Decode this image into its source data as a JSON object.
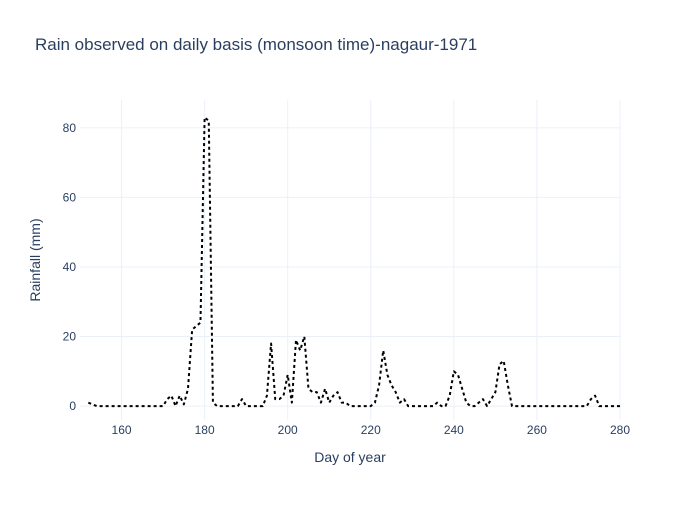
{
  "chart_data": {
    "type": "line",
    "title": "Rain observed on daily basis (monsoon time)-nagaur-1971",
    "xlabel": "Day of year",
    "ylabel": "Rainfall (mm)",
    "xlim": [
      150,
      280
    ],
    "ylim": [
      -4,
      88
    ],
    "x_ticks": [
      160,
      180,
      200,
      220,
      240,
      260,
      280
    ],
    "y_ticks": [
      0,
      20,
      40,
      60,
      80
    ],
    "grid": true,
    "legend": "none",
    "series": [
      {
        "line_color": "#000000",
        "line_style": "dotted",
        "x": [
          152,
          153,
          154,
          155,
          156,
          157,
          158,
          159,
          160,
          161,
          162,
          163,
          164,
          165,
          166,
          167,
          168,
          169,
          170,
          171,
          172,
          173,
          174,
          175,
          176,
          177,
          178,
          179,
          180,
          181,
          182,
          183,
          184,
          185,
          186,
          187,
          188,
          189,
          190,
          191,
          192,
          193,
          194,
          195,
          196,
          197,
          198,
          199,
          200,
          201,
          202,
          203,
          204,
          205,
          206,
          207,
          208,
          209,
          210,
          211,
          212,
          213,
          214,
          215,
          216,
          217,
          218,
          219,
          220,
          221,
          222,
          223,
          224,
          225,
          226,
          227,
          228,
          229,
          230,
          231,
          232,
          233,
          234,
          235,
          236,
          237,
          238,
          239,
          240,
          241,
          242,
          243,
          244,
          245,
          246,
          247,
          248,
          249,
          250,
          251,
          252,
          253,
          254,
          255,
          256,
          257,
          258,
          259,
          260,
          261,
          262,
          263,
          264,
          265,
          266,
          267,
          268,
          269,
          270,
          271,
          272,
          273,
          274,
          275,
          276,
          277,
          278,
          279,
          280
        ],
        "y": [
          1,
          0.5,
          0,
          0,
          0,
          0,
          0,
          0,
          0,
          0,
          0,
          0,
          0,
          0,
          0,
          0,
          0,
          0,
          0,
          2,
          3,
          0,
          3,
          0.5,
          5,
          22,
          23,
          24,
          83,
          82,
          1,
          0,
          0,
          0,
          0,
          0,
          0,
          2,
          0,
          0,
          0,
          0,
          0,
          3,
          18,
          2,
          2,
          3,
          9,
          1,
          19,
          16,
          20,
          5,
          4,
          4,
          1,
          5,
          1,
          3,
          4,
          1,
          1,
          0,
          0,
          0,
          0,
          0,
          0,
          1,
          6,
          16,
          9,
          6,
          4,
          1,
          2,
          0,
          0,
          0,
          0,
          0,
          0,
          0,
          1,
          0,
          0,
          3,
          10,
          9,
          5,
          1,
          0,
          0,
          1,
          2,
          0,
          2,
          4,
          12,
          13,
          6,
          0,
          0,
          0,
          0,
          0,
          0,
          0,
          0,
          0,
          0,
          0,
          0,
          0,
          0,
          0,
          0,
          0,
          0,
          0,
          2,
          3,
          0,
          0,
          0,
          0,
          0,
          0
        ]
      }
    ]
  }
}
